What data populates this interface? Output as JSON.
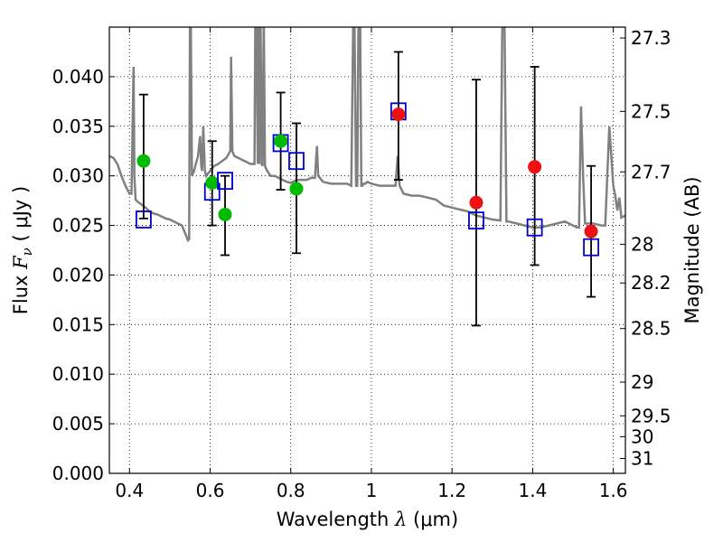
{
  "chart_data": {
    "type": "scatter",
    "title": "",
    "xlabel": "Wavelength  λ (μm)",
    "ylabel": "Flux  F_ν ( μJy )",
    "ylabel_parts": {
      "prefix": "Flux  ",
      "var": "F",
      "sub": "ν",
      "unit": "  ( μJy )"
    },
    "xlabel_parts": {
      "prefix": "Wavelength  ",
      "var": "λ",
      "unit": " (μm)"
    },
    "y2label": "Magnitude (AB)",
    "xlim": [
      0.35,
      1.63
    ],
    "ylim": [
      0.0,
      0.045
    ],
    "xticks": [
      0.4,
      0.6,
      0.8,
      1.0,
      1.2,
      1.4,
      1.6
    ],
    "xtick_labels": [
      "0.4",
      "0.6",
      "0.8",
      "1",
      "1.2",
      "1.4",
      "1.6"
    ],
    "yticks": [
      0.0,
      0.005,
      0.01,
      0.015,
      0.02,
      0.025,
      0.03,
      0.035,
      0.04
    ],
    "ytick_labels": [
      "0.000",
      "0.005",
      "0.010",
      "0.015",
      "0.020",
      "0.025",
      "0.030",
      "0.035",
      "0.040"
    ],
    "y2ticks": [
      {
        "label": "27.3",
        "flux": 0.0439
      },
      {
        "label": "27.5",
        "flux": 0.0365
      },
      {
        "label": "27.7",
        "flux": 0.0304
      },
      {
        "label": "28",
        "flux": 0.0231
      },
      {
        "label": "28.2",
        "flux": 0.0192
      },
      {
        "label": "28.5",
        "flux": 0.0146
      },
      {
        "label": "29",
        "flux": 0.0092
      },
      {
        "label": "29.5",
        "flux": 0.0058
      },
      {
        "label": "30",
        "flux": 0.0037
      },
      {
        "label": "31",
        "flux": 0.0015
      }
    ],
    "grid": true,
    "colors": {
      "model": "#808080",
      "green": "#00bb00",
      "red": "#ee1111",
      "square": "#0000cc",
      "errorbar": "#000000"
    },
    "model_spectrum": {
      "x": [
        0.35,
        0.36,
        0.37,
        0.38,
        0.39,
        0.4,
        0.405,
        0.41,
        0.412,
        0.415,
        0.42,
        0.43,
        0.44,
        0.45,
        0.46,
        0.47,
        0.48,
        0.49,
        0.5,
        0.51,
        0.52,
        0.53,
        0.54,
        0.545,
        0.548,
        0.55,
        0.552,
        0.555,
        0.56,
        0.57,
        0.575,
        0.578,
        0.58,
        0.583,
        0.587,
        0.59,
        0.6,
        0.61,
        0.62,
        0.63,
        0.64,
        0.65,
        0.652,
        0.655,
        0.66,
        0.67,
        0.68,
        0.69,
        0.7,
        0.71,
        0.712,
        0.715,
        0.718,
        0.72,
        0.722,
        0.725,
        0.728,
        0.73,
        0.733,
        0.736,
        0.74,
        0.75,
        0.76,
        0.77,
        0.78,
        0.79,
        0.8,
        0.81,
        0.82,
        0.83,
        0.84,
        0.85,
        0.86,
        0.865,
        0.868,
        0.872,
        0.88,
        0.9,
        0.92,
        0.94,
        0.95,
        0.955,
        0.958,
        0.962,
        0.965,
        0.968,
        0.972,
        0.975,
        0.978,
        0.98,
        0.985,
        0.99,
        1.0,
        1.02,
        1.04,
        1.06,
        1.065,
        1.07,
        1.08,
        1.1,
        1.12,
        1.14,
        1.16,
        1.18,
        1.2,
        1.22,
        1.24,
        1.26,
        1.28,
        1.3,
        1.32,
        1.325,
        1.33,
        1.335,
        1.34,
        1.36,
        1.38,
        1.4,
        1.42,
        1.44,
        1.46,
        1.48,
        1.5,
        1.51,
        1.515,
        1.52,
        1.525,
        1.53,
        1.55,
        1.57,
        1.58,
        1.59,
        1.6,
        1.605,
        1.61,
        1.615,
        1.62,
        1.63
      ],
      "y": [
        0.032,
        0.0318,
        0.0312,
        0.03,
        0.029,
        0.0282,
        0.0282,
        0.041,
        0.03,
        0.0276,
        0.0274,
        0.0271,
        0.0268,
        0.0264,
        0.0262,
        0.0261,
        0.0259,
        0.0257,
        0.0256,
        0.0254,
        0.0252,
        0.025,
        0.024,
        0.0235,
        0.0236,
        0.046,
        0.046,
        0.03,
        0.0305,
        0.032,
        0.034,
        0.031,
        0.0305,
        0.035,
        0.0305,
        0.03,
        0.0305,
        0.031,
        0.0312,
        0.0315,
        0.0318,
        0.0325,
        0.042,
        0.0325,
        0.032,
        0.0318,
        0.0316,
        0.0314,
        0.0312,
        0.0312,
        0.046,
        0.046,
        0.0312,
        0.046,
        0.0312,
        0.046,
        0.0312,
        0.031,
        0.046,
        0.031,
        0.0306,
        0.03,
        0.03,
        0.0298,
        0.0296,
        0.0294,
        0.0293,
        0.0295,
        0.0296,
        0.0296,
        0.0296,
        0.0298,
        0.0298,
        0.033,
        0.03,
        0.0298,
        0.0294,
        0.0292,
        0.0292,
        0.0292,
        0.029,
        0.046,
        0.046,
        0.029,
        0.029,
        0.046,
        0.046,
        0.029,
        0.029,
        0.0292,
        0.0292,
        0.0294,
        0.0292,
        0.029,
        0.029,
        0.029,
        0.032,
        0.029,
        0.0282,
        0.028,
        0.028,
        0.0278,
        0.0276,
        0.027,
        0.0268,
        0.0266,
        0.0264,
        0.026,
        0.0258,
        0.0256,
        0.0255,
        0.046,
        0.046,
        0.0254,
        0.0254,
        0.0252,
        0.025,
        0.0248,
        0.0248,
        0.025,
        0.0252,
        0.0254,
        0.025,
        0.0248,
        0.0248,
        0.037,
        0.03,
        0.0252,
        0.0252,
        0.025,
        0.025,
        0.035,
        0.029,
        0.028,
        0.0265,
        0.0278,
        0.0258,
        0.026
      ]
    },
    "points": [
      {
        "x": 0.435,
        "green": 0.0315,
        "square": 0.0256,
        "err_low": 0.0257,
        "err_high": 0.0382
      },
      {
        "x": 0.605,
        "green": 0.0293,
        "square": 0.0284,
        "err_low": 0.025,
        "err_high": 0.0335
      },
      {
        "x": 0.637,
        "green": 0.0261,
        "square": 0.0295,
        "err_low": 0.022,
        "err_high": 0.03
      },
      {
        "x": 0.775,
        "green": 0.0335,
        "square": 0.0333,
        "err_low": 0.0286,
        "err_high": 0.0384
      },
      {
        "x": 0.814,
        "green": 0.0287,
        "square": 0.0315,
        "err_low": 0.0222,
        "err_high": 0.0353
      },
      {
        "x": 1.067,
        "red": 0.0362,
        "square": 0.0365,
        "err_low": 0.0296,
        "err_high": 0.0425
      },
      {
        "x": 1.26,
        "red": 0.0273,
        "square": 0.0255,
        "err_low": 0.0149,
        "err_high": 0.0397
      },
      {
        "x": 1.405,
        "red": 0.0309,
        "square": 0.0248,
        "err_low": 0.021,
        "err_high": 0.041
      },
      {
        "x": 1.545,
        "red": 0.0244,
        "square": 0.0228,
        "err_low": 0.0178,
        "err_high": 0.031
      }
    ]
  }
}
